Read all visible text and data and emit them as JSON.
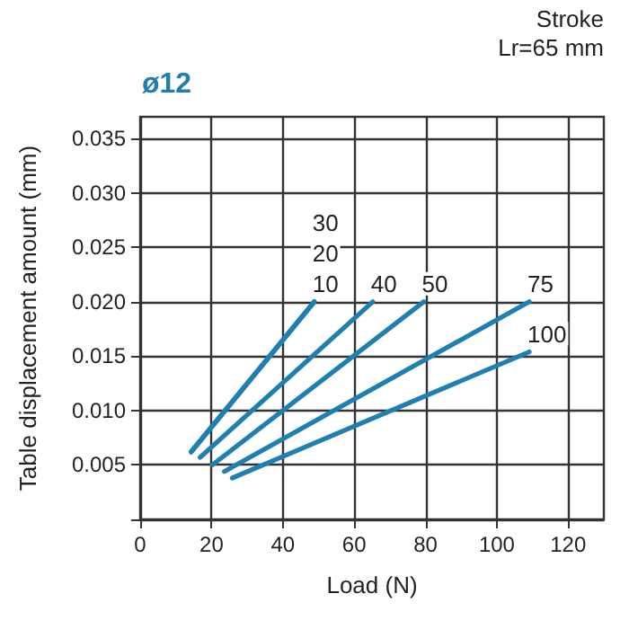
{
  "chart_data": {
    "type": "line",
    "title": "ø12",
    "annotations": [
      "Stroke",
      "Lr=65 mm"
    ],
    "xlabel": "Load (N)",
    "ylabel": "Table displacement amount (mm)",
    "xlim": [
      0,
      130
    ],
    "xticks": [
      0,
      20,
      40,
      60,
      80,
      100,
      120
    ],
    "ylim": [
      0,
      0.037
    ],
    "yticks": [
      {
        "value": 0,
        "label": null
      },
      0.005,
      {
        "value": 0.01,
        "label": "0.010"
      },
      0.015,
      {
        "value": 0.02,
        "label": "0.020"
      },
      0.025,
      {
        "value": 0.03,
        "label": "0.030"
      },
      0.035
    ],
    "grid": true,
    "legend": false,
    "marker": "none",
    "line_style": "solid",
    "series": [
      {
        "name": "10",
        "color": "#1f7fb0",
        "x": [
          14.3,
          48.8
        ],
        "values": [
          0.0062,
          0.02
        ]
      },
      {
        "name": "20",
        "color": "#1f7fb0",
        "x": [
          14.3,
          48.8
        ],
        "values": [
          0.0062,
          0.02
        ]
      },
      {
        "name": "30",
        "color": "#1f7fb0",
        "x": [
          14.3,
          48.8
        ],
        "values": [
          0.0062,
          0.02
        ]
      },
      {
        "name": "40",
        "color": "#1f7fb0",
        "x": [
          16.8,
          65.2
        ],
        "values": [
          0.0057,
          0.02
        ]
      },
      {
        "name": "50",
        "color": "#1f7fb0",
        "x": [
          20.2,
          79.5
        ],
        "values": [
          0.005,
          0.02
        ]
      },
      {
        "name": "75",
        "color": "#1f7fb0",
        "x": [
          23.6,
          109.1
        ],
        "values": [
          0.0044,
          0.02
        ]
      },
      {
        "name": "100",
        "color": "#1f7fb0",
        "x": [
          25.8,
          109.1
        ],
        "values": [
          0.0038,
          0.0154
        ]
      }
    ]
  }
}
